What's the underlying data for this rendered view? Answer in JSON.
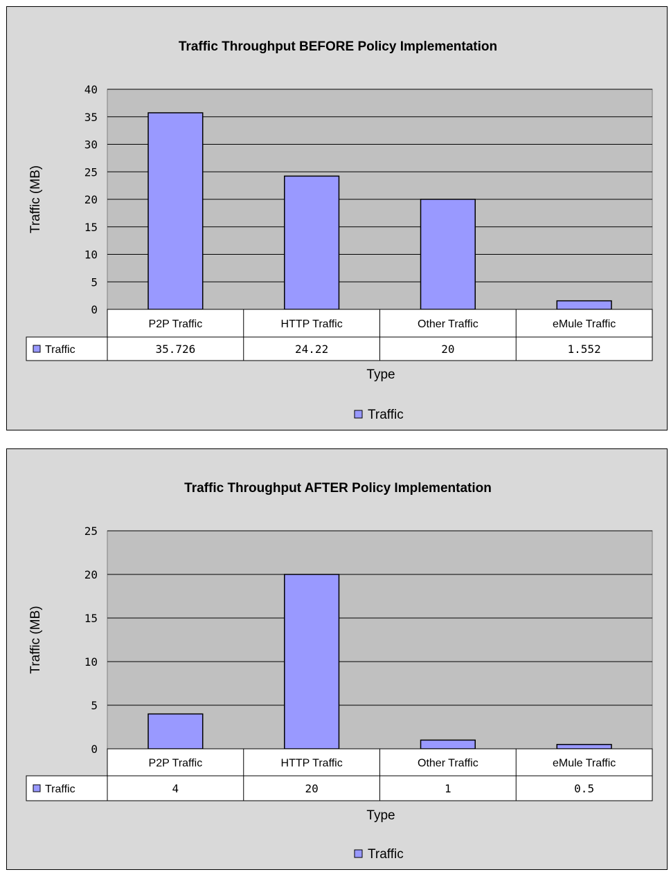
{
  "chart_data": [
    {
      "type": "bar",
      "title": "Traffic Throughput BEFORE Policy Implementation",
      "xlabel": "Type",
      "ylabel": "Traffic (MB)",
      "categories": [
        "P2P Traffic",
        "HTTP Traffic",
        "Other Traffic",
        "eMule Traffic"
      ],
      "series": [
        {
          "name": "Traffic",
          "values": [
            35.726,
            24.22,
            20,
            1.552
          ],
          "value_labels": [
            "35.726",
            "24.22",
            "20",
            "1.552"
          ]
        }
      ],
      "ylim": [
        0,
        40
      ],
      "yticks": [
        0,
        5,
        10,
        15,
        20,
        25,
        30,
        35,
        40
      ],
      "grid": true,
      "data_table": true,
      "legend": "bottom",
      "legend_label": "Traffic",
      "colors": {
        "bar": "#9999ff",
        "plot_bg": "#c0c0c0",
        "panel_bg": "#d9d9d9",
        "table_bg": "#ffffff"
      }
    },
    {
      "type": "bar",
      "title": "Traffic Throughput AFTER Policy Implementation",
      "xlabel": "Type",
      "ylabel": "Traffic (MB)",
      "categories": [
        "P2P Traffic",
        "HTTP Traffic",
        "Other Traffic",
        "eMule Traffic"
      ],
      "series": [
        {
          "name": "Traffic",
          "values": [
            4,
            20,
            1,
            0.5
          ],
          "value_labels": [
            "4",
            "20",
            "1",
            "0.5"
          ]
        }
      ],
      "ylim": [
        0,
        25
      ],
      "yticks": [
        0,
        5,
        10,
        15,
        20,
        25
      ],
      "grid": true,
      "data_table": true,
      "legend": "bottom",
      "legend_label": "Traffic",
      "colors": {
        "bar": "#9999ff",
        "plot_bg": "#c0c0c0",
        "panel_bg": "#d9d9d9",
        "table_bg": "#ffffff"
      }
    }
  ]
}
